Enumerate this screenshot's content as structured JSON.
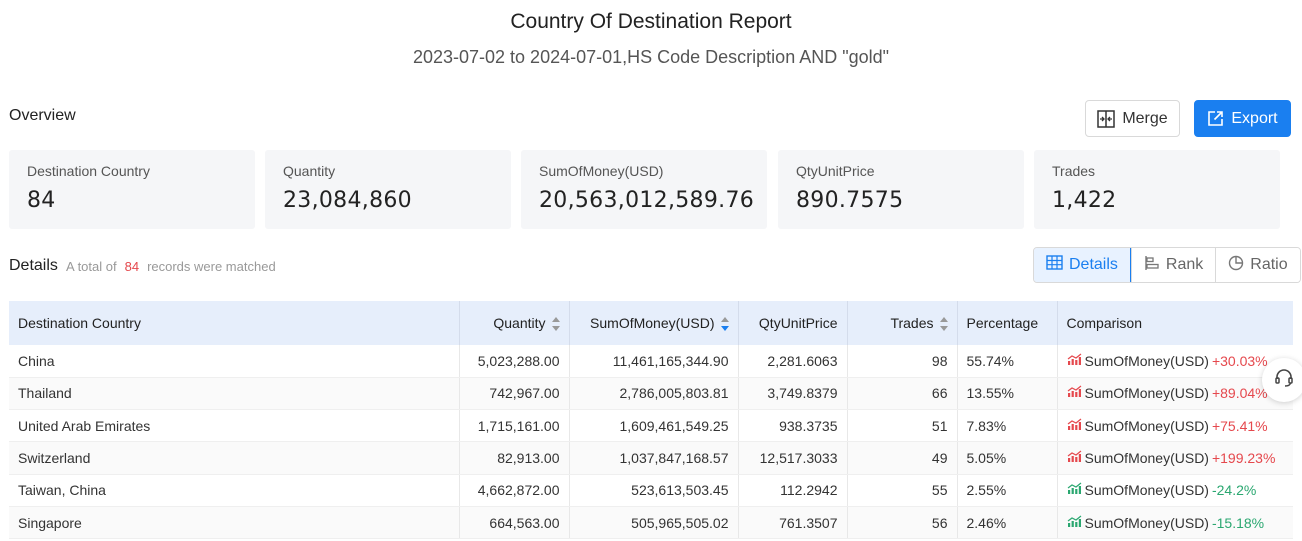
{
  "header": {
    "title": "Country Of Destination Report",
    "subtitle": "2023-07-02 to 2024-07-01,HS Code Description AND \"gold\""
  },
  "overview": {
    "label": "Overview",
    "merge_label": "Merge",
    "export_label": "Export",
    "stats": [
      {
        "label": "Destination Country",
        "value": "84"
      },
      {
        "label": "Quantity",
        "value": "23,084,860"
      },
      {
        "label": "SumOfMoney(USD)",
        "value": "20,563,012,589.76"
      },
      {
        "label": "QtyUnitPrice",
        "value": "890.7575"
      },
      {
        "label": "Trades",
        "value": "1,422"
      }
    ]
  },
  "details": {
    "label": "Details",
    "matched_prefix": "A total of",
    "matched_count": "84",
    "matched_suffix": "records were matched",
    "views": {
      "details": "Details",
      "rank": "Rank",
      "ratio": "Ratio"
    }
  },
  "table": {
    "columns": {
      "country": "Destination Country",
      "quantity": "Quantity",
      "sum": "SumOfMoney(USD)",
      "unit_price": "QtyUnitPrice",
      "trades": "Trades",
      "percentage": "Percentage",
      "comparison": "Comparison"
    },
    "rows": [
      {
        "country": "China",
        "quantity": "5,023,288.00",
        "sum": "11,461,165,344.90",
        "unit_price": "2,281.6063",
        "trades": "98",
        "percentage": "55.74%",
        "cmp_metric": "SumOfMoney(USD)",
        "cmp_delta": "+30.03%"
      },
      {
        "country": "Thailand",
        "quantity": "742,967.00",
        "sum": "2,786,005,803.81",
        "unit_price": "3,749.8379",
        "trades": "66",
        "percentage": "13.55%",
        "cmp_metric": "SumOfMoney(USD)",
        "cmp_delta": "+89.04%"
      },
      {
        "country": "United Arab Emirates",
        "quantity": "1,715,161.00",
        "sum": "1,609,461,549.25",
        "unit_price": "938.3735",
        "trades": "51",
        "percentage": "7.83%",
        "cmp_metric": "SumOfMoney(USD)",
        "cmp_delta": "+75.41%"
      },
      {
        "country": "Switzerland",
        "quantity": "82,913.00",
        "sum": "1,037,847,168.57",
        "unit_price": "12,517.3033",
        "trades": "49",
        "percentage": "5.05%",
        "cmp_metric": "SumOfMoney(USD)",
        "cmp_delta": "+199.23%"
      },
      {
        "country": "Taiwan, China",
        "quantity": "4,662,872.00",
        "sum": "523,613,503.45",
        "unit_price": "112.2942",
        "trades": "55",
        "percentage": "2.55%",
        "cmp_metric": "SumOfMoney(USD)",
        "cmp_delta": "-24.2%"
      },
      {
        "country": "Singapore",
        "quantity": "664,563.00",
        "sum": "505,965,505.02",
        "unit_price": "761.3507",
        "trades": "56",
        "percentage": "2.46%",
        "cmp_metric": "SumOfMoney(USD)",
        "cmp_delta": "-15.18%"
      }
    ]
  },
  "colors": {
    "accent": "#1a7ff0",
    "increase": "#e5484d",
    "decrease": "#2aa770",
    "header_bg": "#e6eefb"
  },
  "icons": {
    "merge": "merge-icon",
    "export": "export-icon",
    "details": "table-icon",
    "rank": "bar-rank-icon",
    "ratio": "pie-icon",
    "trend_up": "trend-up-icon",
    "trend_down": "trend-down-icon",
    "support": "headset-icon"
  }
}
